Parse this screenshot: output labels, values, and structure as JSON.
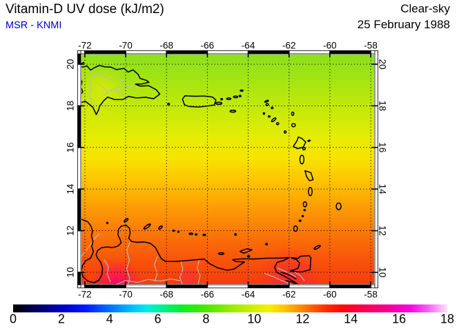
{
  "header": {
    "title": "Vitamin-D UV dose (kJ/m2)",
    "subtitle": "MSR - KNMI",
    "subtitle_color": "#0000cd",
    "condition": "Clear-sky",
    "date": "25 February 1988"
  },
  "map": {
    "lon_min": -72.2,
    "lon_max": -57.8,
    "lat_min": 9.4,
    "lat_max": 20.5,
    "x_ticks": [
      {
        "value": -72,
        "label": "-72"
      },
      {
        "value": -70,
        "label": "-70"
      },
      {
        "value": -68,
        "label": "-68"
      },
      {
        "value": -66,
        "label": "-66"
      },
      {
        "value": -64,
        "label": "-64"
      },
      {
        "value": -62,
        "label": "-62"
      },
      {
        "value": -60,
        "label": "-60"
      },
      {
        "value": -58,
        "label": "-58"
      }
    ],
    "y_ticks": [
      {
        "value": 20,
        "label": "20"
      },
      {
        "value": 18,
        "label": "18"
      },
      {
        "value": 16,
        "label": "16"
      },
      {
        "value": 14,
        "label": "14"
      },
      {
        "value": 12,
        "label": "12"
      },
      {
        "value": 10,
        "label": "10"
      }
    ],
    "grid_style": "dotted",
    "coast_color": "#000000",
    "river_border_color": "#bcbcbc"
  },
  "gradient_by_latitude": [
    {
      "lat": 20.5,
      "color": "#8cdf1e"
    },
    {
      "lat": 19.5,
      "color": "#9ee414"
    },
    {
      "lat": 18.5,
      "color": "#b5e70e"
    },
    {
      "lat": 17.5,
      "color": "#cdea08"
    },
    {
      "lat": 16.5,
      "color": "#e5ec04"
    },
    {
      "lat": 15.5,
      "color": "#f6e400"
    },
    {
      "lat": 14.5,
      "color": "#fdc702"
    },
    {
      "lat": 13.5,
      "color": "#fda904"
    },
    {
      "lat": 12.5,
      "color": "#fb8a06"
    },
    {
      "lat": 11.5,
      "color": "#f96c08"
    },
    {
      "lat": 10.5,
      "color": "#f8520a"
    },
    {
      "lat": 9.4,
      "color": "#f53c0c"
    }
  ],
  "hotspots": [
    {
      "lon": -70.45,
      "lat": 9.45,
      "radius_deg": 1.25,
      "color": "#ff0070",
      "opacity": 0.9
    },
    {
      "lon": -61.95,
      "lat": 9.7,
      "radius_deg": 1.6,
      "color": "#fd1355",
      "opacity": 0.55
    },
    {
      "lon": -66.9,
      "lat": 9.8,
      "radius_deg": 0.6,
      "color": "#fd2260",
      "opacity": 0.5
    },
    {
      "lon": -71.05,
      "lat": 18.85,
      "radius_deg": 1.0,
      "color": "#f2ee00",
      "opacity": 0.5
    },
    {
      "lon": -72.2,
      "lat": 18.3,
      "radius_deg": 2.6,
      "color": "#f4e800",
      "opacity": 0.28
    }
  ],
  "colorbar": {
    "min": 0,
    "max": 18,
    "ticks": [
      {
        "value": 0,
        "label": "0"
      },
      {
        "value": 2,
        "label": "2"
      },
      {
        "value": 4,
        "label": "4"
      },
      {
        "value": 6,
        "label": "6"
      },
      {
        "value": 8,
        "label": "8"
      },
      {
        "value": 10,
        "label": "10"
      },
      {
        "value": 12,
        "label": "12"
      },
      {
        "value": 14,
        "label": "14"
      },
      {
        "value": 16,
        "label": "16"
      },
      {
        "value": 18,
        "label": "18"
      }
    ],
    "stops": [
      {
        "value": 0,
        "color": "#000000"
      },
      {
        "value": 1,
        "color": "#00005c"
      },
      {
        "value": 2,
        "color": "#0000c0"
      },
      {
        "value": 3,
        "color": "#0018ff"
      },
      {
        "value": 4,
        "color": "#0070ff"
      },
      {
        "value": 5,
        "color": "#00c4ff"
      },
      {
        "value": 5.6,
        "color": "#00eedd"
      },
      {
        "value": 6.2,
        "color": "#00f08c"
      },
      {
        "value": 7,
        "color": "#0cee28"
      },
      {
        "value": 8,
        "color": "#49e800"
      },
      {
        "value": 9,
        "color": "#96ec00"
      },
      {
        "value": 10,
        "color": "#d2f000"
      },
      {
        "value": 10.6,
        "color": "#f6f000"
      },
      {
        "value": 11.2,
        "color": "#ffc800"
      },
      {
        "value": 11.8,
        "color": "#ff9400"
      },
      {
        "value": 12.4,
        "color": "#ff5e00"
      },
      {
        "value": 13,
        "color": "#ff2a00"
      },
      {
        "value": 13.6,
        "color": "#fe0a06"
      },
      {
        "value": 14.2,
        "color": "#fb0038"
      },
      {
        "value": 15,
        "color": "#f8006e"
      },
      {
        "value": 15.8,
        "color": "#f500a6"
      },
      {
        "value": 16.5,
        "color": "#f30ae0"
      },
      {
        "value": 17.2,
        "color": "#f860f2"
      },
      {
        "value": 18,
        "color": "#ffe2fb"
      }
    ]
  },
  "chart_data": {
    "type": "heatmap",
    "title": "Vitamin-D UV dose (kJ/m2)",
    "units": "kJ/m2",
    "source": "MSR - KNMI",
    "condition": "Clear-sky",
    "date": "25 February 1988",
    "region": {
      "lon_range": [
        -72.2,
        -57.8
      ],
      "lat_range": [
        9.4,
        20.5
      ]
    },
    "scale_range": [
      0,
      18
    ],
    "lat_profile": [
      {
        "lat": 20.5,
        "value": 9.2
      },
      {
        "lat": 19,
        "value": 9.6
      },
      {
        "lat": 18,
        "value": 9.9
      },
      {
        "lat": 17,
        "value": 10.3
      },
      {
        "lat": 16,
        "value": 10.7
      },
      {
        "lat": 15,
        "value": 11.2
      },
      {
        "lat": 14,
        "value": 11.7
      },
      {
        "lat": 13,
        "value": 12.1
      },
      {
        "lat": 12,
        "value": 12.5
      },
      {
        "lat": 11,
        "value": 12.8
      },
      {
        "lat": 10,
        "value": 13.1
      },
      {
        "lat": 9.4,
        "value": 13.4
      }
    ],
    "local_maxima": [
      {
        "lon": -70.45,
        "lat": 9.45,
        "value": 14.6
      },
      {
        "lon": -61.95,
        "lat": 9.7,
        "value": 14.1
      },
      {
        "lon": -66.9,
        "lat": 9.8,
        "value": 13.9
      }
    ]
  }
}
